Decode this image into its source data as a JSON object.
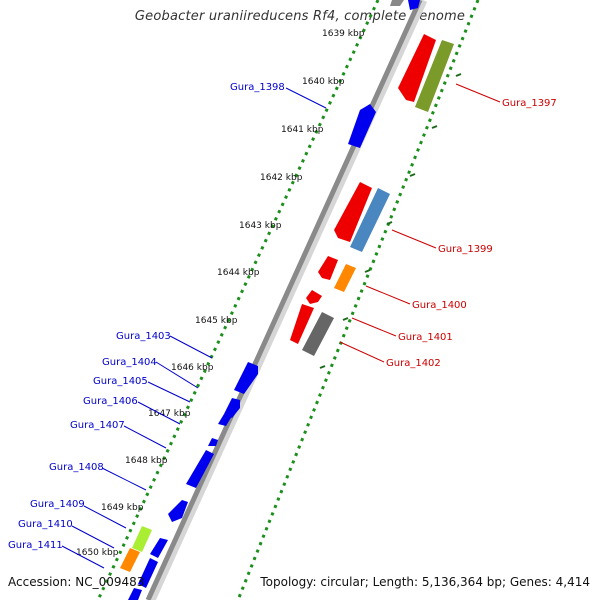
{
  "title": "Geobacter uraniireducens Rf4, complete genome",
  "accession": "Accession: NC_009483",
  "summary": "Topology: circular; Length: 5,136,364 bp; Genes: 4,414",
  "ticks": [
    "1639 kbp",
    "1640 kbp",
    "1641 kbp",
    "1642 kbp",
    "1643 kbp",
    "1644 kbp",
    "1645 kbp",
    "1646 kbp",
    "1647 kbp",
    "1648 kbp",
    "1649 kbp",
    "1650 kbp"
  ],
  "forward_genes": [
    "Gura_1398",
    "Gura_1403",
    "Gura_1404",
    "Gura_1405",
    "Gura_1406",
    "Gura_1407",
    "Gura_1408",
    "Gura_1409",
    "Gura_1410",
    "Gura_1411"
  ],
  "reverse_genes": [
    "Gura_1397",
    "Gura_1399",
    "Gura_1400",
    "Gura_1401",
    "Gura_1402"
  ],
  "colors": {
    "forward_label": "#0000cc",
    "reverse_label": "#cc0000",
    "cds_forward": "#0000ee",
    "cds_reverse": "#ee0000",
    "dotted_track": "#1a8f1a",
    "backbone": "#8a8a8a"
  }
}
